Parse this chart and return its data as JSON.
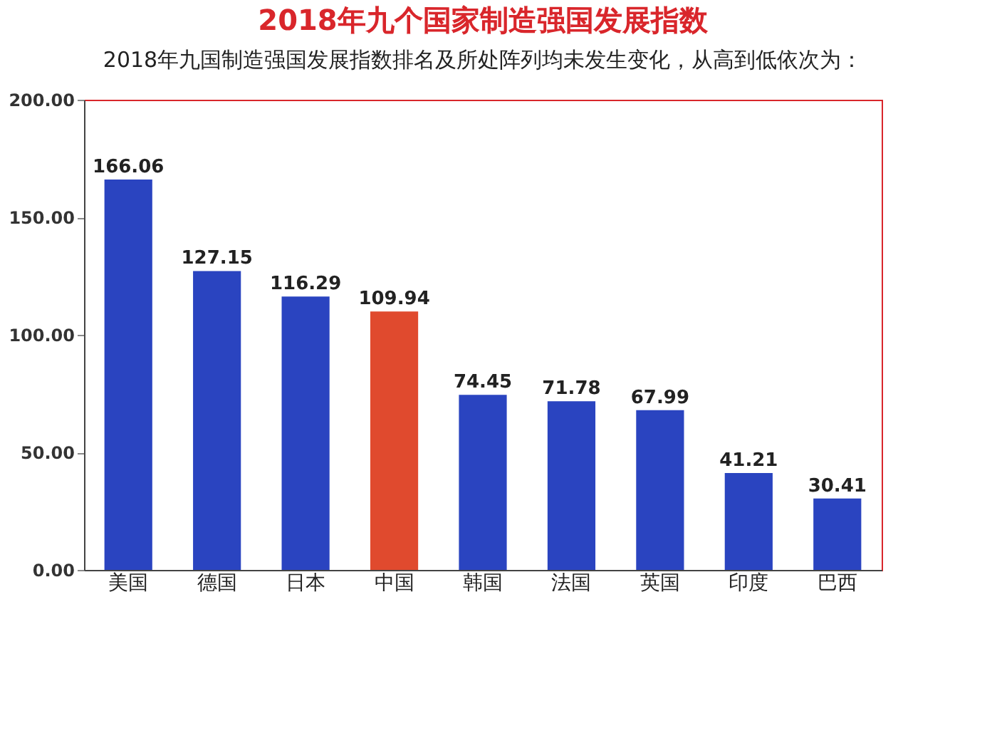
{
  "chart_data": {
    "type": "bar",
    "title": "2018年九个国家制造强国发展指数",
    "subtitle": "2018年九国制造强国发展指数排名及所处阵列均未发生变化，从高到低依次为：",
    "categories": [
      "美国",
      "德国",
      "日本",
      "中国",
      "韩国",
      "法国",
      "英国",
      "印度",
      "巴西"
    ],
    "values": [
      166.06,
      127.15,
      116.29,
      109.94,
      74.45,
      71.78,
      67.99,
      41.21,
      30.41
    ],
    "colors": [
      "#2a44c0",
      "#2a44c0",
      "#2a44c0",
      "#e04a2e",
      "#2a44c0",
      "#2a44c0",
      "#2a44c0",
      "#2a44c0",
      "#2a44c0"
    ],
    "ylim": [
      0,
      200
    ],
    "yticks": [
      {
        "value": 0,
        "label": "0.00"
      },
      {
        "value": 50,
        "label": "50.00"
      },
      {
        "value": 100,
        "label": "100.00"
      },
      {
        "value": 150,
        "label": "150.00"
      },
      {
        "value": 200,
        "label": "200.00"
      }
    ],
    "data_labels": true,
    "grid": false
  }
}
